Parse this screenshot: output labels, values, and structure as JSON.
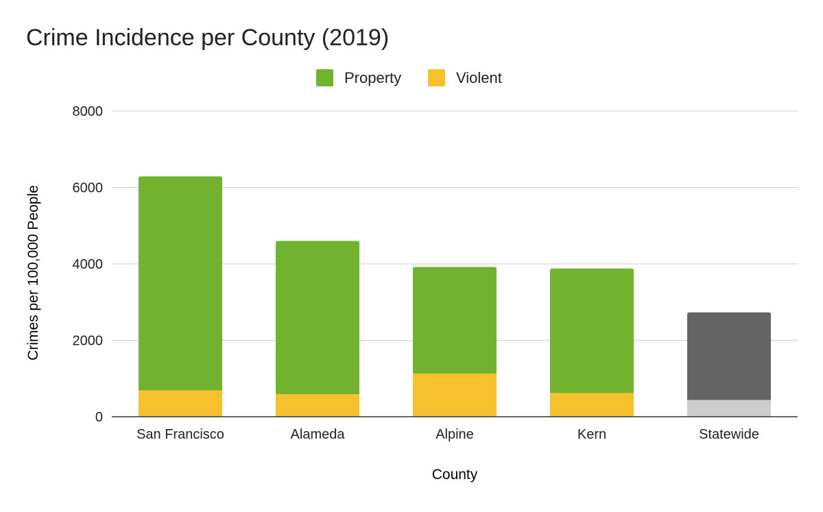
{
  "chart_data": {
    "type": "bar",
    "stacked": true,
    "title": "Crime Incidence per County (2019)",
    "xlabel": "County",
    "ylabel": "Crimes per 100,000 People",
    "categories": [
      "San Francisco",
      "Alameda",
      "Alpine",
      "Kern",
      "Statewide"
    ],
    "series": [
      {
        "name": "Violent",
        "values": [
          690,
          590,
          1130,
          620,
          440
        ]
      },
      {
        "name": "Property",
        "values": [
          5600,
          4010,
          2790,
          3260,
          2290
        ]
      }
    ],
    "ylim": [
      0,
      8000
    ],
    "yticks": [
      "0",
      "2000",
      "4000",
      "6000",
      "8000"
    ],
    "grid": true,
    "legend_position": "top",
    "colors": {
      "Property": "#71b22e",
      "Violent": "#f7c12e",
      "highlight_property": "#646464",
      "highlight_violent": "#cdcdcd"
    },
    "highlighted_category": "Statewide"
  }
}
